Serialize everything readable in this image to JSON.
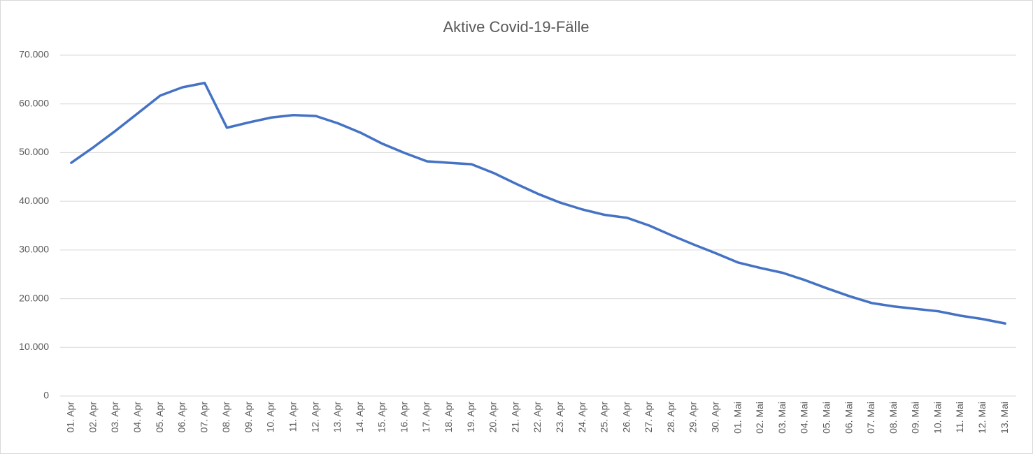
{
  "chart_data": {
    "type": "line",
    "title": "Aktive Covid-19-Fälle",
    "categories": [
      "01. Apr",
      "02. Apr",
      "03. Apr",
      "04. Apr",
      "05. Apr",
      "06. Apr",
      "07. Apr",
      "08. Apr",
      "09. Apr",
      "10. Apr",
      "11. Apr",
      "12. Apr",
      "13. Apr",
      "14. Apr",
      "15. Apr",
      "16. Apr",
      "17. Apr",
      "18. Apr",
      "19. Apr",
      "20. Apr",
      "21. Apr",
      "22. Apr",
      "23. Apr",
      "24. Apr",
      "25. Apr",
      "26. Apr",
      "27. Apr",
      "28. Apr",
      "29. Apr",
      "30. Apr",
      "01. Mai",
      "02. Mai",
      "03. Mai",
      "04. Mai",
      "05. Mai",
      "06. Mai",
      "07. Mai",
      "08. Mai",
      "09. Mai",
      "10. Mai",
      "11. Mai",
      "12. Mai",
      "13. Mai"
    ],
    "values": [
      47900,
      51100,
      54500,
      58100,
      61700,
      63400,
      64300,
      55100,
      56200,
      57200,
      57700,
      57500,
      56000,
      54100,
      51800,
      49900,
      48200,
      47900,
      47600,
      45800,
      43600,
      41500,
      39700,
      38300,
      37200,
      36600,
      35000,
      33000,
      31100,
      29300,
      27400,
      26300,
      25300,
      23800,
      22100,
      20500,
      19100,
      18400,
      17900,
      17400,
      16500,
      15800,
      14900
    ],
    "color": "#4472c4",
    "ylim": [
      0,
      70000
    ],
    "yticks": [
      0,
      {
        "value": 10000,
        "label": "10.000"
      },
      {
        "value": 20000,
        "label": "20.000"
      },
      {
        "value": 30000,
        "label": "30.000"
      },
      {
        "value": 40000,
        "label": "40.000"
      },
      {
        "value": 50000,
        "label": "50.000"
      },
      {
        "value": 60000,
        "label": "60.000"
      },
      {
        "value": 70000,
        "label": "70.000"
      }
    ],
    "grid": true
  }
}
